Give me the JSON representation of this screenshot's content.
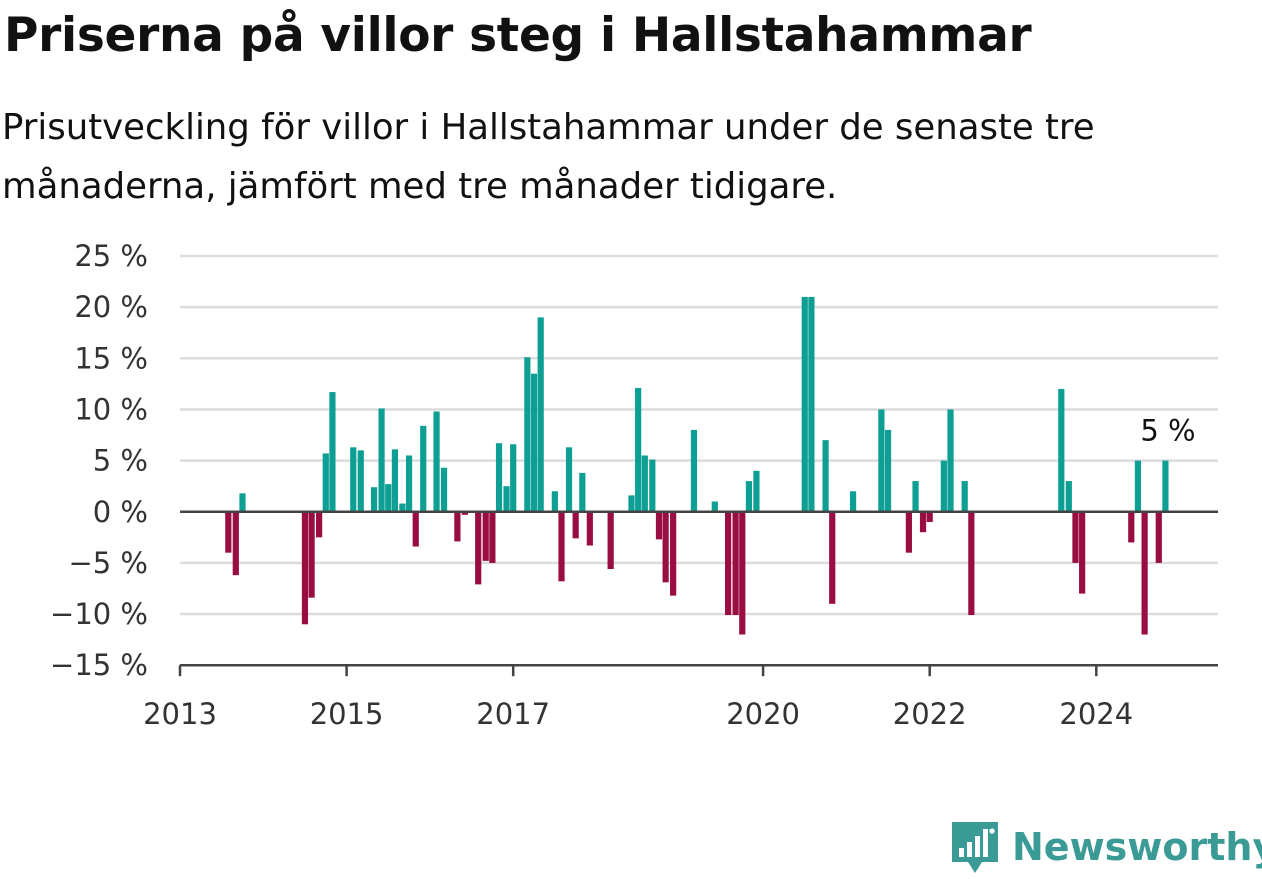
{
  "title": "Priserna på villor steg i Hallstahammar",
  "subtitle": "Prisutveckling för villor i Hallstahammar under de senaste tre månaderna, jämfört med tre månader tidigare.",
  "brand": "Newsworthy",
  "colors": {
    "positive": "#0e9f94",
    "negative": "#990d42",
    "grid": "#dcdcdc",
    "axis": "#444444"
  },
  "chart_data": {
    "type": "bar",
    "ylim": [
      -15,
      25
    ],
    "yticks": [
      25,
      20,
      15,
      10,
      5,
      0,
      -5,
      -10,
      -15
    ],
    "ytick_labels": [
      "25 %",
      "20 %",
      "15 %",
      "10 %",
      "5 %",
      "0 %",
      "−5 %",
      "−10 %",
      "−15 %"
    ],
    "xlim": [
      2013,
      2025.5
    ],
    "xticks": [
      2013,
      2015,
      2017,
      2020,
      2022,
      2024
    ],
    "grid": true,
    "annotation": {
      "text": "5 %",
      "x": 2024.5,
      "y": 5
    },
    "bars": [
      {
        "x": 2013.58,
        "y": -4
      },
      {
        "x": 2013.67,
        "y": -6.2
      },
      {
        "x": 2013.75,
        "y": 1.8
      },
      {
        "x": 2014.5,
        "y": -11
      },
      {
        "x": 2014.58,
        "y": -8.4
      },
      {
        "x": 2014.67,
        "y": -2.5
      },
      {
        "x": 2014.75,
        "y": 5.7
      },
      {
        "x": 2014.83,
        "y": 11.7
      },
      {
        "x": 2015.08,
        "y": 6.3
      },
      {
        "x": 2015.17,
        "y": 6
      },
      {
        "x": 2015.33,
        "y": 2.4
      },
      {
        "x": 2015.42,
        "y": 10.1
      },
      {
        "x": 2015.5,
        "y": 2.7
      },
      {
        "x": 2015.58,
        "y": 6.1
      },
      {
        "x": 2015.67,
        "y": 0.8
      },
      {
        "x": 2015.75,
        "y": 5.5
      },
      {
        "x": 2015.83,
        "y": -3.4
      },
      {
        "x": 2015.92,
        "y": 8.4
      },
      {
        "x": 2016.08,
        "y": 9.8
      },
      {
        "x": 2016.17,
        "y": 4.3
      },
      {
        "x": 2016.33,
        "y": -2.9
      },
      {
        "x": 2016.42,
        "y": -0.3
      },
      {
        "x": 2016.58,
        "y": -7.1
      },
      {
        "x": 2016.67,
        "y": -4.8
      },
      {
        "x": 2016.75,
        "y": -5
      },
      {
        "x": 2016.83,
        "y": 6.7
      },
      {
        "x": 2016.92,
        "y": 2.5
      },
      {
        "x": 2017.0,
        "y": 6.6
      },
      {
        "x": 2017.17,
        "y": 15.1
      },
      {
        "x": 2017.25,
        "y": 13.5
      },
      {
        "x": 2017.33,
        "y": 19
      },
      {
        "x": 2017.5,
        "y": 2
      },
      {
        "x": 2017.58,
        "y": -6.8
      },
      {
        "x": 2017.67,
        "y": 6.3
      },
      {
        "x": 2017.75,
        "y": -2.6
      },
      {
        "x": 2017.83,
        "y": 3.8
      },
      {
        "x": 2017.92,
        "y": -3.3
      },
      {
        "x": 2018.17,
        "y": -5.6
      },
      {
        "x": 2018.42,
        "y": 1.6
      },
      {
        "x": 2018.5,
        "y": 12.1
      },
      {
        "x": 2018.58,
        "y": 5.5
      },
      {
        "x": 2018.67,
        "y": 5.1
      },
      {
        "x": 2018.75,
        "y": -2.7
      },
      {
        "x": 2018.83,
        "y": -6.9
      },
      {
        "x": 2018.92,
        "y": -8.2
      },
      {
        "x": 2019.17,
        "y": 8
      },
      {
        "x": 2019.42,
        "y": 1
      },
      {
        "x": 2019.58,
        "y": -10.1
      },
      {
        "x": 2019.67,
        "y": -10.1
      },
      {
        "x": 2019.75,
        "y": -12
      },
      {
        "x": 2019.83,
        "y": 3
      },
      {
        "x": 2019.92,
        "y": 4
      },
      {
        "x": 2020.5,
        "y": 21
      },
      {
        "x": 2020.58,
        "y": 21
      },
      {
        "x": 2020.75,
        "y": 7
      },
      {
        "x": 2020.83,
        "y": -9
      },
      {
        "x": 2021.08,
        "y": 2
      },
      {
        "x": 2021.42,
        "y": 10
      },
      {
        "x": 2021.5,
        "y": 8
      },
      {
        "x": 2021.75,
        "y": -4
      },
      {
        "x": 2021.83,
        "y": 3
      },
      {
        "x": 2021.92,
        "y": -2
      },
      {
        "x": 2022.0,
        "y": -1
      },
      {
        "x": 2022.17,
        "y": 5
      },
      {
        "x": 2022.25,
        "y": 10
      },
      {
        "x": 2022.42,
        "y": 3
      },
      {
        "x": 2022.5,
        "y": -10.1
      },
      {
        "x": 2023.58,
        "y": 12
      },
      {
        "x": 2023.67,
        "y": 3
      },
      {
        "x": 2023.75,
        "y": -5
      },
      {
        "x": 2023.83,
        "y": -8
      },
      {
        "x": 2024.42,
        "y": -3
      },
      {
        "x": 2024.5,
        "y": 5
      },
      {
        "x": 2024.58,
        "y": -12
      },
      {
        "x": 2024.75,
        "y": -5
      },
      {
        "x": 2024.83,
        "y": 5
      }
    ]
  }
}
